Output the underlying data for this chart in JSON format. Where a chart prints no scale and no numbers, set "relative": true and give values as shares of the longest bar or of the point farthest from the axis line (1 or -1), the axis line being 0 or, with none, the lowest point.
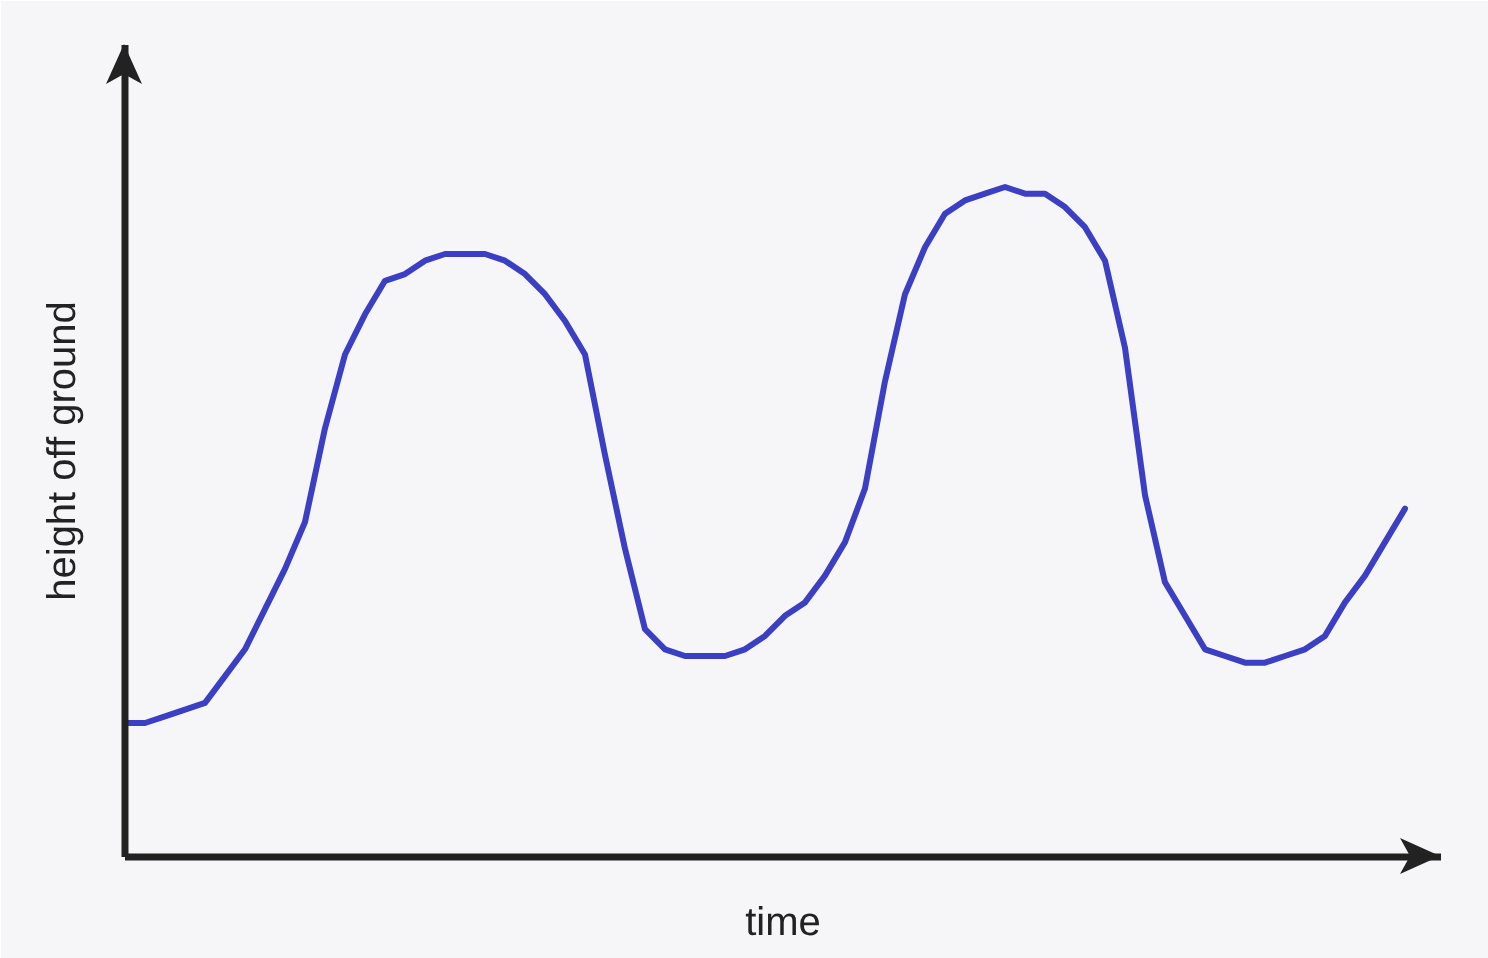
{
  "chart_data": {
    "type": "line",
    "xlabel": "time",
    "ylabel": "height off ground",
    "relative": true,
    "categories": [
      null,
      null,
      null,
      null,
      null,
      null,
      null,
      null,
      null,
      null,
      null,
      null,
      null,
      null,
      null,
      null,
      null,
      null,
      null,
      null,
      null,
      null,
      null,
      null,
      null,
      null,
      null,
      null,
      null,
      null,
      null,
      null,
      null,
      null,
      null,
      null,
      null,
      null,
      null,
      null,
      null,
      null,
      null,
      null,
      null,
      null,
      null,
      null,
      null,
      null,
      null,
      null,
      null,
      null,
      null,
      null,
      null,
      null,
      null,
      null,
      null,
      null,
      null,
      null,
      null
    ],
    "color": "#3a3fc4",
    "values": [
      0.2,
      0.2,
      0.21,
      0.22,
      0.23,
      0.27,
      0.31,
      0.37,
      0.43,
      0.5,
      0.64,
      0.75,
      0.81,
      0.86,
      0.87,
      0.89,
      0.9,
      0.9,
      0.9,
      0.89,
      0.87,
      0.84,
      0.8,
      0.75,
      0.6,
      0.46,
      0.34,
      0.31,
      0.3,
      0.3,
      0.3,
      0.31,
      0.33,
      0.36,
      0.38,
      0.42,
      0.47,
      0.55,
      0.71,
      0.84,
      0.91,
      0.96,
      0.98,
      0.99,
      1.0,
      0.99,
      0.99,
      0.97,
      0.94,
      0.89,
      0.76,
      0.54,
      0.41,
      0.36,
      0.31,
      0.3,
      0.29,
      0.29,
      0.3,
      0.31,
      0.33,
      0.38,
      0.42,
      0.47,
      0.52
    ]
  }
}
